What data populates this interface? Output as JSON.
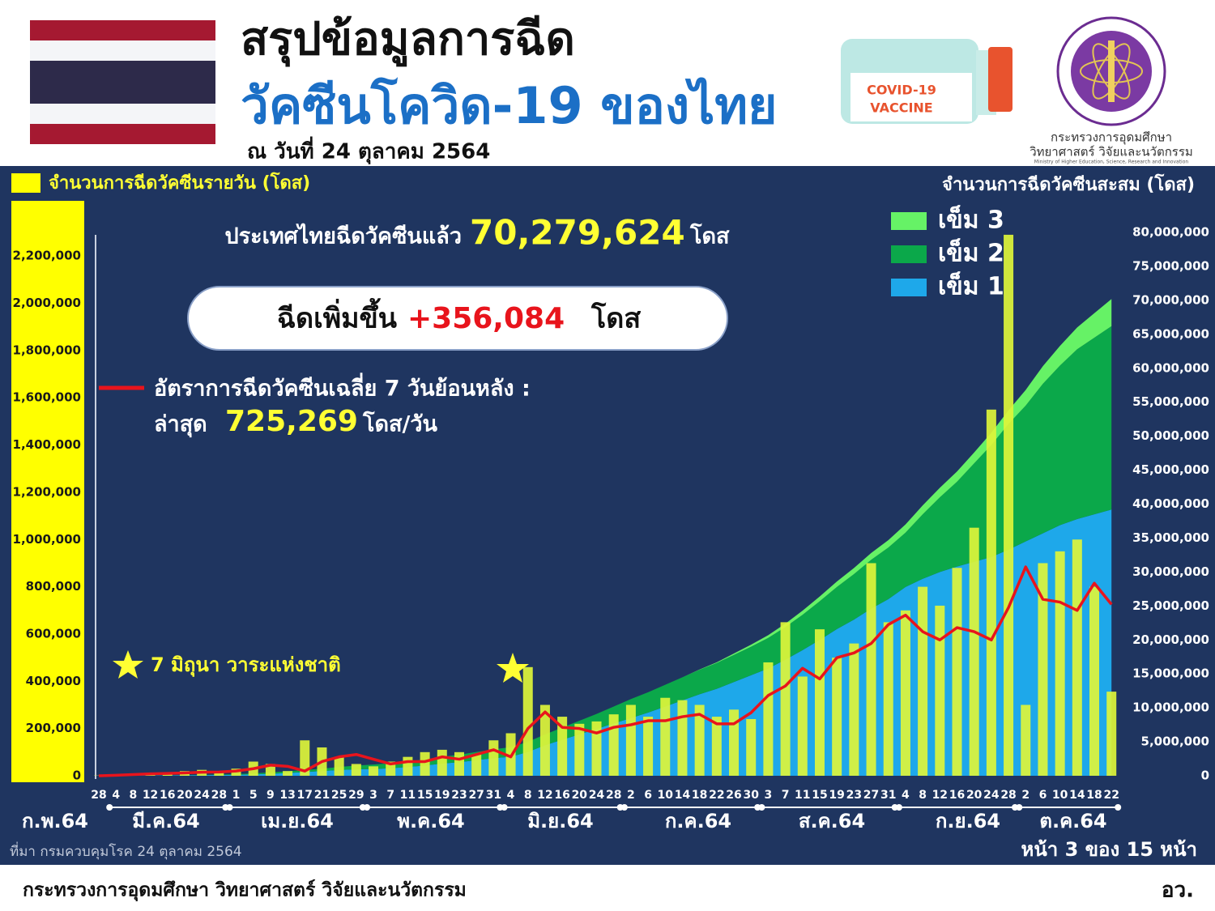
{
  "header": {
    "title_line1": "สรุปข้อมูลการฉีด",
    "title_line2": "วัคซีนโควิด-19 ของไทย",
    "date": "ณ วันที่ 24 ตุลาคม 2564",
    "vaccine_line1": "COVID-19",
    "vaccine_line2": "VACCINE",
    "ministry_line1": "กระทรวงการอุดมศึกษา",
    "ministry_line2": "วิทยาศาสตร์ วิจัยและนวัตกรรม",
    "ministry_line3": "Ministry of Higher Education, Science, Research and Innovation"
  },
  "chart_data": {
    "type": "combo",
    "categories": [
      "28",
      "4",
      "8",
      "12",
      "16",
      "20",
      "24",
      "28",
      "1",
      "5",
      "9",
      "13",
      "17",
      "21",
      "25",
      "29",
      "3",
      "7",
      "11",
      "15",
      "19",
      "23",
      "27",
      "31",
      "4",
      "8",
      "12",
      "16",
      "20",
      "24",
      "28",
      "2",
      "6",
      "10",
      "14",
      "18",
      "22",
      "26",
      "30",
      "3",
      "7",
      "11",
      "15",
      "19",
      "23",
      "27",
      "31",
      "4",
      "8",
      "12",
      "16",
      "20",
      "24",
      "28",
      "2",
      "6",
      "10",
      "14",
      "18",
      "22"
    ],
    "months": [
      "ก.พ.64",
      "มี.ค.64",
      "เม.ย.64",
      "พ.ค.64",
      "มิ.ย.64",
      "ก.ค.64",
      "ส.ค.64",
      "ก.ย.64",
      "ต.ค.64"
    ],
    "series": [
      {
        "name": "เข็ม 1",
        "type": "area",
        "axis": "y2",
        "color": "#1ea8ea",
        "values": [
          0,
          10000,
          20000,
          30000,
          50000,
          70000,
          90000,
          120000,
          150000,
          200000,
          300000,
          400000,
          550000,
          700000,
          850000,
          950000,
          1000000,
          1100000,
          1300000,
          1500000,
          1800000,
          2000000,
          2300000,
          2600000,
          2800000,
          3500000,
          4500000,
          5300000,
          6100000,
          6900000,
          7700000,
          8500000,
          9300000,
          10200000,
          11100000,
          12000000,
          12800000,
          13800000,
          14800000,
          15800000,
          17100000,
          18500000,
          20000000,
          21600000,
          23000000,
          24600000,
          26000000,
          27800000,
          29000000,
          30000000,
          30800000,
          31500000,
          32200000,
          33300000,
          34500000,
          35700000,
          36900000,
          37800000,
          38500000,
          39200000
        ]
      },
      {
        "name": "เข็ม 2",
        "type": "area",
        "axis": "y2",
        "color": "#0ba84a",
        "values": [
          0,
          0,
          0,
          0,
          10000,
          20000,
          40000,
          60000,
          100000,
          150000,
          200000,
          250000,
          300000,
          350000,
          450000,
          550000,
          650000,
          750000,
          850000,
          900000,
          1000000,
          1100000,
          1200000,
          1300000,
          1400000,
          1500000,
          1600000,
          1800000,
          2000000,
          2200000,
          2500000,
          2800000,
          3000000,
          3200000,
          3400000,
          3600000,
          3800000,
          4000000,
          4200000,
          4500000,
          4800000,
          5200000,
          5700000,
          6200000,
          6700000,
          7200000,
          7600000,
          8000000,
          9500000,
          11000000,
          12500000,
          14500000,
          16500000,
          18500000,
          20000000,
          22000000,
          23500000,
          25000000,
          26000000,
          27000000
        ]
      },
      {
        "name": "เข็ม 3",
        "type": "area",
        "axis": "y2",
        "color": "#66f266",
        "values": [
          0,
          0,
          0,
          0,
          0,
          0,
          0,
          0,
          0,
          0,
          0,
          0,
          0,
          0,
          0,
          0,
          0,
          0,
          0,
          0,
          0,
          0,
          0,
          0,
          0,
          0,
          0,
          0,
          0,
          0,
          0,
          0,
          0,
          0,
          0,
          50000,
          100000,
          200000,
          300000,
          400000,
          500000,
          600000,
          700000,
          800000,
          900000,
          1000000,
          1100000,
          1200000,
          1300000,
          1400000,
          1500000,
          1600000,
          1800000,
          2000000,
          2300000,
          2600000,
          2900000,
          3200000,
          3600000,
          4000000
        ]
      },
      {
        "name": "จำนวนการฉีดวัคซีนรายวัน (โดส)",
        "type": "bar",
        "color": "#def53a",
        "values": [
          1000,
          4000,
          8000,
          12000,
          15000,
          20000,
          25000,
          20000,
          30000,
          60000,
          50000,
          20000,
          150000,
          120000,
          80000,
          50000,
          40000,
          60000,
          80000,
          100000,
          110000,
          100000,
          90000,
          150000,
          180000,
          460000,
          300000,
          250000,
          220000,
          230000,
          260000,
          300000,
          250000,
          330000,
          320000,
          300000,
          250000,
          280000,
          240000,
          480000,
          650000,
          420000,
          620000,
          500000,
          560000,
          900000,
          650000,
          700000,
          800000,
          720000,
          880000,
          1050000,
          1550000,
          2290000,
          300000,
          900000,
          950000,
          1000000,
          800000,
          356084
        ]
      },
      {
        "name": "อัตราการฉีดวัคซีนเฉลี่ย 7 วันย้อนหลัง :",
        "type": "line",
        "color": "#e8141c",
        "values": [
          0,
          2000,
          5000,
          8000,
          10000,
          12000,
          15000,
          16000,
          20000,
          30000,
          45000,
          40000,
          20000,
          60000,
          80000,
          90000,
          70000,
          50000,
          60000,
          60000,
          80000,
          70000,
          90000,
          110000,
          80000,
          200000,
          270000,
          205000,
          200000,
          181000,
          205000,
          216000,
          233000,
          233000,
          250000,
          260000,
          220000,
          220000,
          267000,
          340000,
          380000,
          455000,
          410000,
          500000,
          520000,
          560000,
          640000,
          680000,
          610000,
          575000,
          627000,
          610000,
          575000,
          712000,
          884000,
          747000,
          735000,
          700000,
          815000,
          725269
        ]
      }
    ],
    "ylim": [
      0,
      2300000
    ],
    "yticks": [
      0,
      {
        "value": 200000,
        "label": "200,000"
      },
      {
        "value": 400000,
        "label": "400,000"
      },
      {
        "value": 600000,
        "label": "600,000"
      },
      {
        "value": 800000,
        "label": "800,000"
      },
      {
        "value": 1000000,
        "label": "1,000,000"
      },
      {
        "value": 1200000,
        "label": "1,200,000"
      },
      {
        "value": 1400000,
        "label": "1,400,000"
      },
      {
        "value": 1600000,
        "label": "1,600,000"
      },
      {
        "value": 1800000,
        "label": "1,800,000"
      },
      {
        "value": 2000000,
        "label": "2,000,000"
      },
      {
        "value": 2200000,
        "label": "2,200,000"
      }
    ],
    "y2lim": [
      0,
      80000000
    ],
    "y2ticks": [
      0,
      {
        "value": 5000000,
        "label": "5,000,000"
      },
      {
        "value": 10000000,
        "label": "10,000,000"
      },
      {
        "value": 15000000,
        "label": "15,000,000"
      },
      {
        "value": 20000000,
        "label": "20,000,000"
      },
      {
        "value": 25000000,
        "label": "25,000,000"
      },
      {
        "value": 30000000,
        "label": "30,000,000"
      },
      {
        "value": 35000000,
        "label": "35,000,000"
      },
      {
        "value": 40000000,
        "label": "40,000,000"
      },
      {
        "value": 45000000,
        "label": "45,000,000"
      },
      {
        "value": 50000000,
        "label": "50,000,000"
      },
      {
        "value": 55000000,
        "label": "55,000,000"
      },
      {
        "value": 60000000,
        "label": "60,000,000"
      },
      {
        "value": 65000000,
        "label": "65,000,000"
      },
      {
        "value": 70000000,
        "label": "70,000,000"
      },
      {
        "value": 75000000,
        "label": "75,000,000"
      },
      {
        "value": 80000000,
        "label": "80,000,000"
      }
    ],
    "y2label": "จำนวนการฉีดวัคซีนสะสม (โดส)",
    "annotations": {
      "total_prefix": "ประเทศไทยฉีดวัคซีนแล้ว",
      "total_value": "70,279,624",
      "total_unit": "โดส",
      "increase_prefix": "ฉีดเพิ่มขึ้น",
      "increase_value": "+356,084",
      "increase_unit": "โดส",
      "latest_prefix": "ล่าสุด",
      "latest_value": "725,269",
      "latest_unit": "โดส/วัน",
      "star_note": "7 มิถุนา วาระแห่งชาติ"
    }
  },
  "footer": {
    "source": "ที่มา กรมควบคุมโรค 24 ตุลาคม 2564",
    "page": "หน้า 3 ของ 15 หน้า",
    "ministry": "กระทรวงการอุดมศึกษา วิทยาศาสตร์ วิจัยและนวัตกรรม",
    "abbr": "อว."
  }
}
